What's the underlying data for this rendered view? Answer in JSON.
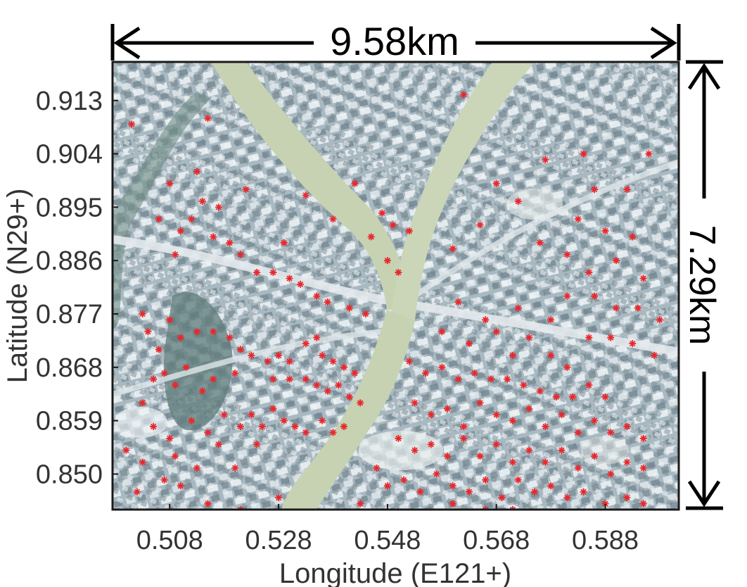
{
  "width_label": "9.58km",
  "height_label": "7.29km",
  "x_axis": {
    "label": "Longitude (E121+)",
    "ticks": [
      "0.508",
      "0.528",
      "0.548",
      "0.568",
      "0.588"
    ],
    "tick_values": [
      0.508,
      0.528,
      0.548,
      0.568,
      0.588
    ],
    "range": [
      0.4975,
      0.6015
    ]
  },
  "y_axis": {
    "label": "Latitude (N29+)",
    "ticks": [
      "0.913",
      "0.904",
      "0.895",
      "0.886",
      "0.877",
      "0.868",
      "0.859",
      "0.850"
    ],
    "tick_values": [
      0.913,
      0.904,
      0.895,
      0.886,
      0.877,
      0.868,
      0.859,
      0.85
    ],
    "range": [
      0.844,
      0.9195
    ]
  },
  "colors": {
    "marker": "#e8282d",
    "frame": "#1a1a1a",
    "river": "#c7d2b2",
    "urban": "#9eafb8",
    "park": "#5f7b79"
  },
  "marker_symbol": "asterisk",
  "points": [
    [
      0.501,
      0.909
    ],
    [
      0.515,
      0.91
    ],
    [
      0.513,
      0.901
    ],
    [
      0.508,
      0.899
    ],
    [
      0.514,
      0.896
    ],
    [
      0.517,
      0.895
    ],
    [
      0.512,
      0.893
    ],
    [
      0.506,
      0.893
    ],
    [
      0.51,
      0.891
    ],
    [
      0.516,
      0.89
    ],
    [
      0.509,
      0.887
    ],
    [
      0.519,
      0.889
    ],
    [
      0.521,
      0.887
    ],
    [
      0.524,
      0.884
    ],
    [
      0.527,
      0.884
    ],
    [
      0.53,
      0.883
    ],
    [
      0.532,
      0.882
    ],
    [
      0.535,
      0.88
    ],
    [
      0.537,
      0.879
    ],
    [
      0.541,
      0.878
    ],
    [
      0.544,
      0.877
    ],
    [
      0.503,
      0.877
    ],
    [
      0.504,
      0.874
    ],
    [
      0.506,
      0.871
    ],
    [
      0.508,
      0.876
    ],
    [
      0.51,
      0.873
    ],
    [
      0.513,
      0.874
    ],
    [
      0.516,
      0.874
    ],
    [
      0.519,
      0.873
    ],
    [
      0.521,
      0.871
    ],
    [
      0.523,
      0.87
    ],
    [
      0.526,
      0.869
    ],
    [
      0.528,
      0.87
    ],
    [
      0.53,
      0.869
    ],
    [
      0.533,
      0.872
    ],
    [
      0.535,
      0.873
    ],
    [
      0.536,
      0.87
    ],
    [
      0.538,
      0.869
    ],
    [
      0.54,
      0.868
    ],
    [
      0.542,
      0.867
    ],
    [
      0.527,
      0.866
    ],
    [
      0.53,
      0.866
    ],
    [
      0.533,
      0.866
    ],
    [
      0.535,
      0.865
    ],
    [
      0.537,
      0.864
    ],
    [
      0.539,
      0.865
    ],
    [
      0.541,
      0.863
    ],
    [
      0.543,
      0.862
    ],
    [
      0.52,
      0.867
    ],
    [
      0.516,
      0.866
    ],
    [
      0.514,
      0.864
    ],
    [
      0.511,
      0.868
    ],
    [
      0.509,
      0.865
    ],
    [
      0.507,
      0.867
    ],
    [
      0.505,
      0.866
    ],
    [
      0.503,
      0.862
    ],
    [
      0.505,
      0.858
    ],
    [
      0.508,
      0.856
    ],
    [
      0.512,
      0.859
    ],
    [
      0.515,
      0.857
    ],
    [
      0.518,
      0.86
    ],
    [
      0.521,
      0.858
    ],
    [
      0.523,
      0.86
    ],
    [
      0.525,
      0.858
    ],
    [
      0.527,
      0.861
    ],
    [
      0.529,
      0.859
    ],
    [
      0.531,
      0.858
    ],
    [
      0.533,
      0.857
    ],
    [
      0.536,
      0.859
    ],
    [
      0.538,
      0.857
    ],
    [
      0.54,
      0.858
    ],
    [
      0.5,
      0.854
    ],
    [
      0.503,
      0.852
    ],
    [
      0.509,
      0.853
    ],
    [
      0.513,
      0.851
    ],
    [
      0.517,
      0.855
    ],
    [
      0.52,
      0.851
    ],
    [
      0.524,
      0.855
    ],
    [
      0.51,
      0.848
    ],
    [
      0.507,
      0.849
    ],
    [
      0.502,
      0.847
    ],
    [
      0.515,
      0.845
    ],
    [
      0.521,
      0.844
    ],
    [
      0.528,
      0.846
    ],
    [
      0.547,
      0.894
    ],
    [
      0.548,
      0.886
    ],
    [
      0.55,
      0.884
    ],
    [
      0.545,
      0.89
    ],
    [
      0.549,
      0.892
    ],
    [
      0.552,
      0.891
    ],
    [
      0.542,
      0.899
    ],
    [
      0.533,
      0.897
    ],
    [
      0.522,
      0.898
    ],
    [
      0.538,
      0.893
    ],
    [
      0.529,
      0.889
    ],
    [
      0.562,
      0.914
    ],
    [
      0.56,
      0.888
    ],
    [
      0.565,
      0.892
    ],
    [
      0.568,
      0.899
    ],
    [
      0.572,
      0.896
    ],
    [
      0.576,
      0.889
    ],
    [
      0.581,
      0.887
    ],
    [
      0.585,
      0.884
    ],
    [
      0.59,
      0.886
    ],
    [
      0.595,
      0.883
    ],
    [
      0.583,
      0.893
    ],
    [
      0.588,
      0.891
    ],
    [
      0.593,
      0.89
    ],
    [
      0.586,
      0.898
    ],
    [
      0.592,
      0.898
    ],
    [
      0.584,
      0.904
    ],
    [
      0.596,
      0.904
    ],
    [
      0.577,
      0.903
    ],
    [
      0.581,
      0.88
    ],
    [
      0.586,
      0.88
    ],
    [
      0.59,
      0.878
    ],
    [
      0.594,
      0.878
    ],
    [
      0.598,
      0.876
    ],
    [
      0.585,
      0.873
    ],
    [
      0.589,
      0.873
    ],
    [
      0.593,
      0.872
    ],
    [
      0.597,
      0.87
    ],
    [
      0.578,
      0.876
    ],
    [
      0.572,
      0.878
    ],
    [
      0.566,
      0.876
    ],
    [
      0.561,
      0.879
    ],
    [
      0.558,
      0.874
    ],
    [
      0.563,
      0.872
    ],
    [
      0.568,
      0.874
    ],
    [
      0.571,
      0.87
    ],
    [
      0.574,
      0.873
    ],
    [
      0.578,
      0.87
    ],
    [
      0.581,
      0.868
    ],
    [
      0.552,
      0.869
    ],
    [
      0.555,
      0.867
    ],
    [
      0.558,
      0.868
    ],
    [
      0.561,
      0.866
    ],
    [
      0.564,
      0.867
    ],
    [
      0.567,
      0.866
    ],
    [
      0.57,
      0.866
    ],
    [
      0.573,
      0.865
    ],
    [
      0.576,
      0.864
    ],
    [
      0.579,
      0.863
    ],
    [
      0.582,
      0.863
    ],
    [
      0.585,
      0.865
    ],
    [
      0.588,
      0.863
    ],
    [
      0.553,
      0.862
    ],
    [
      0.556,
      0.86
    ],
    [
      0.559,
      0.861
    ],
    [
      0.562,
      0.858
    ],
    [
      0.565,
      0.862
    ],
    [
      0.568,
      0.86
    ],
    [
      0.571,
      0.859
    ],
    [
      0.574,
      0.861
    ],
    [
      0.577,
      0.858
    ],
    [
      0.58,
      0.86
    ],
    [
      0.583,
      0.857
    ],
    [
      0.586,
      0.859
    ],
    [
      0.589,
      0.857
    ],
    [
      0.592,
      0.858
    ],
    [
      0.595,
      0.856
    ],
    [
      0.55,
      0.856
    ],
    [
      0.553,
      0.854
    ],
    [
      0.556,
      0.855
    ],
    [
      0.559,
      0.853
    ],
    [
      0.562,
      0.856
    ],
    [
      0.565,
      0.853
    ],
    [
      0.568,
      0.855
    ],
    [
      0.571,
      0.852
    ],
    [
      0.574,
      0.854
    ],
    [
      0.577,
      0.852
    ],
    [
      0.58,
      0.854
    ],
    [
      0.583,
      0.851
    ],
    [
      0.586,
      0.853
    ],
    [
      0.589,
      0.85
    ],
    [
      0.592,
      0.852
    ],
    [
      0.595,
      0.851
    ],
    [
      0.546,
      0.851
    ],
    [
      0.548,
      0.848
    ],
    [
      0.551,
      0.849
    ],
    [
      0.554,
      0.847
    ],
    [
      0.557,
      0.85
    ],
    [
      0.56,
      0.848
    ],
    [
      0.563,
      0.847
    ],
    [
      0.566,
      0.849
    ],
    [
      0.569,
      0.846
    ],
    [
      0.572,
      0.849
    ],
    [
      0.575,
      0.847
    ],
    [
      0.578,
      0.848
    ],
    [
      0.581,
      0.846
    ],
    [
      0.584,
      0.847
    ],
    [
      0.588,
      0.845
    ],
    [
      0.592,
      0.846
    ],
    [
      0.595,
      0.845
    ],
    [
      0.543,
      0.845
    ],
    [
      0.56,
      0.845
    ],
    [
      0.566,
      0.844
    ],
    [
      0.571,
      0.844
    ]
  ]
}
